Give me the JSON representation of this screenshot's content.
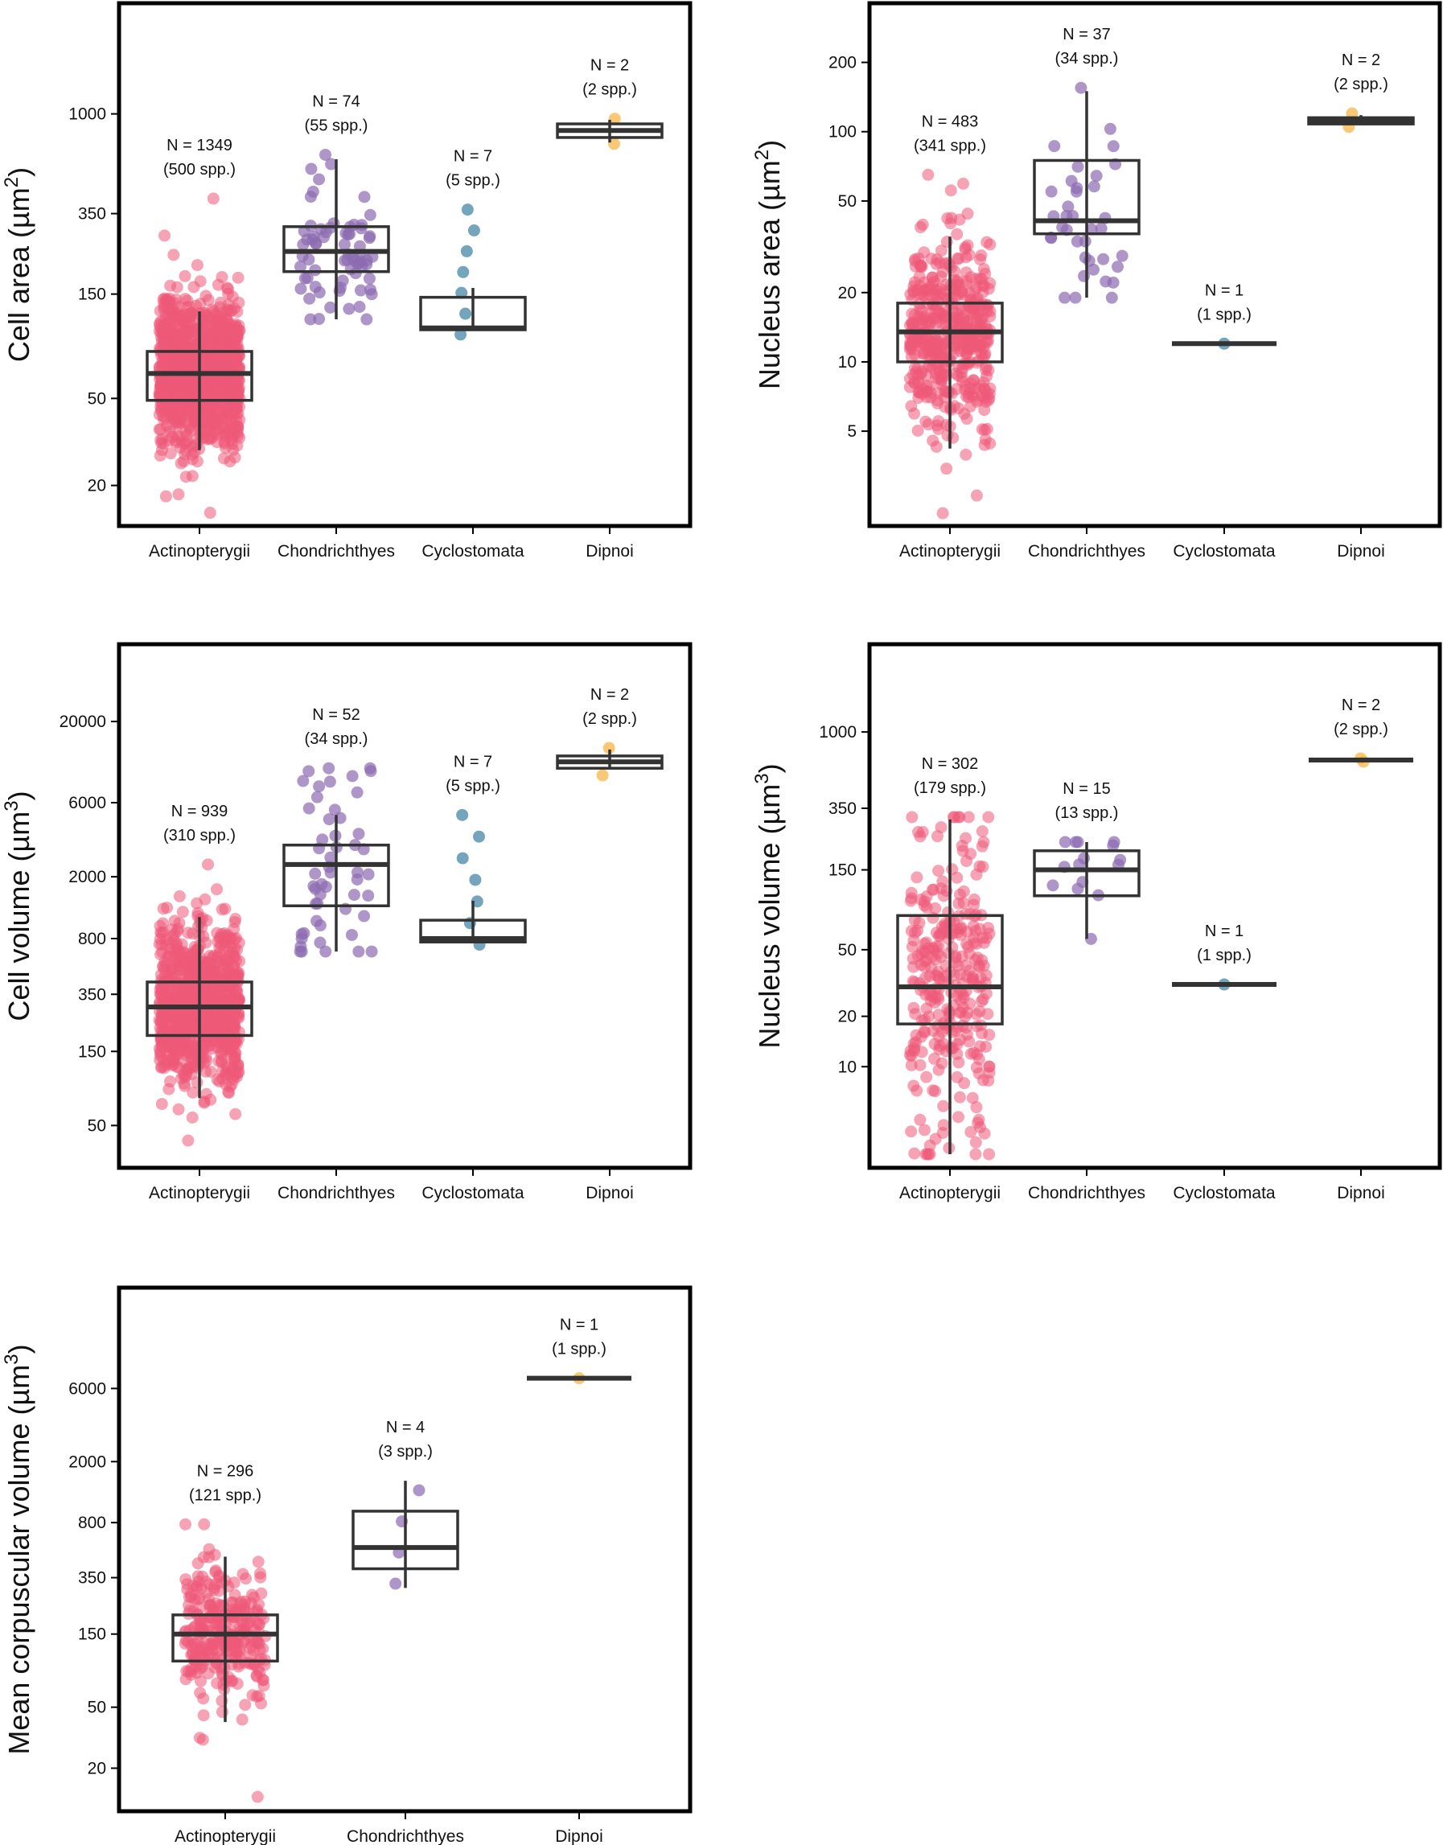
{
  "colors": {
    "Actinopterygii": "#ee5a78",
    "Chondrichthyes": "#8c6bb1",
    "Cyclostomata": "#3b7ea1",
    "Dipnoi": "#f6b13c",
    "box": "#333333"
  },
  "chart_data": [
    {
      "type": "boxplot",
      "id": "cell_area",
      "ylabel": "Cell area (µm²)",
      "ylabel_main": "Cell area (µm",
      "ylabel_sup": "2",
      "ylabel_end": ")",
      "yscale": "log",
      "ylim": [
        13.5,
        3100
      ],
      "yticks": [
        20,
        50,
        150,
        350,
        1000
      ],
      "categories": [
        "Actinopterygii",
        "Chondrichthyes",
        "Cyclostomata",
        "Dipnoi"
      ],
      "groups": [
        {
          "name": "Actinopterygii",
          "n_label": "N = 1349",
          "spp_label": "(500 spp.)",
          "n": 1349,
          "q1": 49,
          "median": 65,
          "q3": 82,
          "whisker_low": 29,
          "whisker_high": 125,
          "min": 15,
          "max": 410
        },
        {
          "name": "Chondrichthyes",
          "n_label": "N = 74",
          "spp_label": "(55 spp.)",
          "n": 74,
          "q1": 190,
          "median": 235,
          "q3": 305,
          "whisker_low": 115,
          "whisker_high": 620,
          "min": 115,
          "max": 650
        },
        {
          "name": "Cyclostomata",
          "n_label": "N = 7",
          "spp_label": "(5 spp.)",
          "n": 7,
          "q1": 103,
          "median": 105,
          "q3": 145,
          "whisker_low": 103,
          "whisker_high": 160,
          "min": 98,
          "max": 365
        },
        {
          "name": "Dipnoi",
          "n_label": "N = 2",
          "spp_label": "(2 spp.)",
          "n": 2,
          "q1": 780,
          "median": 840,
          "q3": 900,
          "whisker_low": 740,
          "whisker_high": 940,
          "min": 730,
          "max": 950
        }
      ]
    },
    {
      "type": "boxplot",
      "id": "nucleus_area",
      "ylabel": "Nucleus area (µm²)",
      "ylabel_main": "Nucleus area (µm",
      "ylabel_sup": "2",
      "ylabel_end": ")",
      "yscale": "log",
      "ylim": [
        2.0,
        350
      ],
      "yticks": [
        5,
        10,
        20,
        50,
        100,
        200
      ],
      "categories": [
        "Actinopterygii",
        "Chondrichthyes",
        "Cyclostomata",
        "Dipnoi"
      ],
      "groups": [
        {
          "name": "Actinopterygii",
          "n_label": "N = 483",
          "spp_label": "(341 spp.)",
          "n": 483,
          "q1": 10.0,
          "median": 13.5,
          "q3": 18,
          "whisker_low": 4.2,
          "whisker_high": 35,
          "min": 2.2,
          "max": 65
        },
        {
          "name": "Chondrichthyes",
          "n_label": "N = 37",
          "spp_label": "(34 spp.)",
          "n": 37,
          "q1": 36,
          "median": 41,
          "q3": 75,
          "whisker_low": 19,
          "whisker_high": 150,
          "min": 19,
          "max": 155
        },
        {
          "name": "Cyclostomata",
          "n_label": "N = 1",
          "spp_label": "(1 spp.)",
          "n": 1,
          "q1": 12,
          "median": 12,
          "q3": 12,
          "whisker_low": 12,
          "whisker_high": 12,
          "min": 12,
          "max": 12
        },
        {
          "name": "Dipnoi",
          "n_label": "N = 2",
          "spp_label": "(2 spp.)",
          "n": 2,
          "q1": 108,
          "median": 112,
          "q3": 115,
          "whisker_low": 108,
          "whisker_high": 118,
          "min": 105,
          "max": 120
        }
      ]
    },
    {
      "type": "boxplot",
      "id": "cell_volume",
      "ylabel": "Cell volume (µm³)",
      "ylabel_main": "Cell volume (µm",
      "ylabel_sup": "3",
      "ylabel_end": ")",
      "yscale": "log",
      "ylim": [
        28,
        60000
      ],
      "yticks": [
        50,
        150,
        350,
        800,
        2000,
        6000,
        20000
      ],
      "categories": [
        "Actinopterygii",
        "Chondrichthyes",
        "Cyclostomata",
        "Dipnoi"
      ],
      "groups": [
        {
          "name": "Actinopterygii",
          "n_label": "N = 939",
          "spp_label": "(310 spp.)",
          "n": 939,
          "q1": 190,
          "median": 290,
          "q3": 420,
          "whisker_low": 75,
          "whisker_high": 1100,
          "min": 40,
          "max": 2400
        },
        {
          "name": "Chondrichthyes",
          "n_label": "N = 52",
          "spp_label": "(34 spp.)",
          "n": 52,
          "q1": 1300,
          "median": 2400,
          "q3": 3200,
          "whisker_low": 660,
          "whisker_high": 5000,
          "min": 660,
          "max": 10000
        },
        {
          "name": "Cyclostomata",
          "n_label": "N = 7",
          "spp_label": "(5 spp.)",
          "n": 7,
          "q1": 760,
          "median": 800,
          "q3": 1050,
          "whisker_low": 760,
          "whisker_high": 1400,
          "min": 730,
          "max": 5000
        },
        {
          "name": "Dipnoi",
          "n_label": "N = 2",
          "spp_label": "(2 spp.)",
          "n": 2,
          "q1": 10000,
          "median": 11000,
          "q3": 12000,
          "whisker_low": 9800,
          "whisker_high": 13200,
          "min": 9000,
          "max": 13500
        }
      ]
    },
    {
      "type": "boxplot",
      "id": "nucleus_volume",
      "ylabel": "Nucleus volume (µm³)",
      "ylabel_main": "Nucleus volume (µm",
      "ylabel_sup": "3",
      "ylabel_end": ")",
      "yscale": "log",
      "ylim": [
        2.6,
        3200
      ],
      "yticks": [
        10,
        20,
        50,
        150,
        350,
        1000
      ],
      "categories": [
        "Actinopterygii",
        "Chondrichthyes",
        "Cyclostomata",
        "Dipnoi"
      ],
      "groups": [
        {
          "name": "Actinopterygii",
          "n_label": "N = 302",
          "spp_label": "(179 spp.)",
          "n": 302,
          "q1": 18,
          "median": 30,
          "q3": 80,
          "whisker_low": 3.0,
          "whisker_high": 300,
          "min": 3.0,
          "max": 310
        },
        {
          "name": "Chondrichthyes",
          "n_label": "N = 15",
          "spp_label": "(13 spp.)",
          "n": 15,
          "q1": 105,
          "median": 150,
          "q3": 195,
          "whisker_low": 58,
          "whisker_high": 220,
          "min": 58,
          "max": 220
        },
        {
          "name": "Cyclostomata",
          "n_label": "N = 1",
          "spp_label": "(1 spp.)",
          "n": 1,
          "q1": 31,
          "median": 31,
          "q3": 31,
          "whisker_low": 31,
          "whisker_high": 31,
          "min": 31,
          "max": 31
        },
        {
          "name": "Dipnoi",
          "n_label": "N = 2",
          "spp_label": "(2 spp.)",
          "n": 2,
          "q1": 680,
          "median": 680,
          "q3": 680,
          "whisker_low": 680,
          "whisker_high": 680,
          "min": 665,
          "max": 695
        }
      ]
    },
    {
      "type": "boxplot",
      "id": "mean_corpuscular_volume",
      "ylabel": "Mean corpuscular volume (µm³)",
      "ylabel_main": "Mean corpuscular volume (µm",
      "ylabel_sup": "3",
      "ylabel_end": ")",
      "yscale": "log",
      "ylim": [
        11,
        26000
      ],
      "yticks": [
        20,
        50,
        150,
        350,
        800,
        2000,
        6000
      ],
      "categories": [
        "Actinopterygii",
        "Chondrichthyes",
        "Dipnoi"
      ],
      "groups": [
        {
          "name": "Actinopterygii",
          "n_label": "N = 296",
          "spp_label": "(121 spp.)",
          "n": 296,
          "q1": 100,
          "median": 150,
          "q3": 200,
          "whisker_low": 40,
          "whisker_high": 480,
          "min": 13,
          "max": 780
        },
        {
          "name": "Chondrichthyes",
          "n_label": "N = 4",
          "spp_label": "(3 spp.)",
          "n": 4,
          "q1": 400,
          "median": 550,
          "q3": 950,
          "whisker_low": 300,
          "whisker_high": 1500,
          "min": 320,
          "max": 1300
        },
        {
          "name": "Dipnoi",
          "n_label": "N = 1",
          "spp_label": "(1 spp.)",
          "n": 1,
          "q1": 7000,
          "median": 7000,
          "q3": 7000,
          "whisker_low": 7000,
          "whisker_high": 7000,
          "min": 7000,
          "max": 7000
        }
      ]
    }
  ]
}
